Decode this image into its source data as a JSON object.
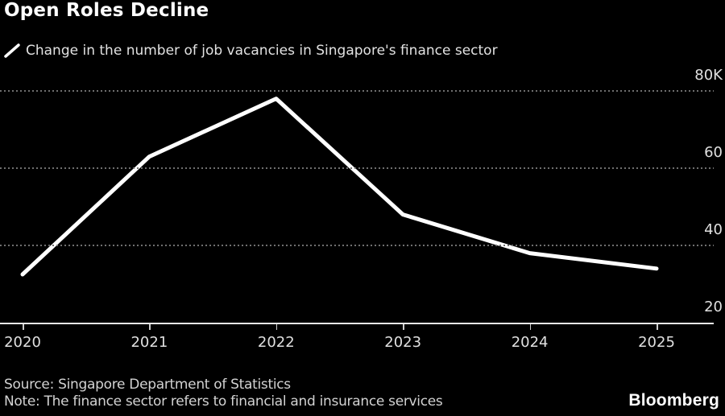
{
  "title": "Open Roles Decline",
  "legend": {
    "label": "Change in the number of job vacancies in Singapore's finance sector"
  },
  "footer": {
    "source": "Source: Singapore Department of Statistics",
    "note": "Note: The finance sector refers to financial and insurance services",
    "brand": "Bloomberg"
  },
  "colors": {
    "background": "#000000",
    "line": "#ffffff",
    "grid": "#6f6f6f",
    "axis": "#e8e8e8",
    "tick": "#cccccc",
    "axis_label": "#e0e0e0"
  },
  "chart_data": {
    "type": "line",
    "title": "Open Roles Decline",
    "series_name": "Change in the number of job vacancies in Singapore's finance sector",
    "x": [
      2020,
      2021,
      2022,
      2023,
      2024,
      2025
    ],
    "values": [
      32.5,
      63,
      78,
      48,
      38,
      34
    ],
    "unit": "thousands of job vacancies",
    "x_tick_labels": [
      "2020",
      "2021",
      "2022",
      "2023",
      "2024",
      "2025"
    ],
    "y_tick_labels": [
      "80K",
      "60",
      "40",
      "20"
    ],
    "y_tick_values": [
      80,
      60,
      40,
      20
    ],
    "ylim": [
      20,
      80
    ],
    "xlabel": "",
    "ylabel": "",
    "grid": "horizontal dotted",
    "legend_position": "top-left"
  }
}
